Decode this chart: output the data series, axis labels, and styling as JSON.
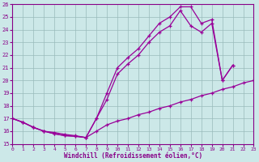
{
  "xlabel": "Windchill (Refroidissement éolien,°C)",
  "bg_color": "#cce8e8",
  "line_color": "#990099",
  "grid_color": "#99bbbb",
  "xlim": [
    0,
    23
  ],
  "ylim": [
    15,
    26
  ],
  "ytick_vals": [
    15,
    16,
    17,
    18,
    19,
    20,
    21,
    22,
    23,
    24,
    25,
    26
  ],
  "xtick_vals": [
    0,
    1,
    2,
    3,
    4,
    5,
    6,
    7,
    8,
    9,
    10,
    11,
    12,
    13,
    14,
    15,
    16,
    17,
    18,
    19,
    20,
    21,
    22,
    23
  ],
  "line1_x": [
    0,
    1,
    2,
    3,
    4,
    5,
    6,
    7,
    8,
    9,
    10,
    11,
    12,
    13,
    14,
    15,
    16,
    17,
    18,
    19,
    20,
    21
  ],
  "line1_y": [
    17.0,
    16.7,
    16.3,
    16.0,
    15.8,
    15.65,
    15.6,
    15.5,
    17.0,
    19.0,
    21.0,
    21.8,
    22.5,
    23.5,
    24.5,
    25.0,
    25.8,
    25.8,
    24.5,
    24.8,
    20.0,
    21.2
  ],
  "line2_x": [
    0,
    1,
    2,
    3,
    4,
    5,
    6,
    7,
    8,
    9,
    10,
    11,
    12,
    13,
    14,
    15,
    16,
    17,
    18,
    19,
    20,
    21
  ],
  "line2_y": [
    17.0,
    16.7,
    16.3,
    16.0,
    15.8,
    15.65,
    15.6,
    15.5,
    17.0,
    18.5,
    20.5,
    21.3,
    22.0,
    23.0,
    23.8,
    24.3,
    25.5,
    24.3,
    23.8,
    24.5,
    20.0,
    21.2
  ],
  "line3_x": [
    0,
    1,
    2,
    3,
    4,
    5,
    6,
    7,
    8,
    9,
    10,
    11,
    12,
    13,
    14,
    15,
    16,
    17,
    18,
    19,
    20,
    21,
    22,
    23
  ],
  "line3_y": [
    17.0,
    16.7,
    16.3,
    16.0,
    15.9,
    15.75,
    15.65,
    15.5,
    16.0,
    16.5,
    16.8,
    17.0,
    17.3,
    17.5,
    17.8,
    18.0,
    18.3,
    18.5,
    18.8,
    19.0,
    19.3,
    19.5,
    19.8,
    20.0
  ]
}
